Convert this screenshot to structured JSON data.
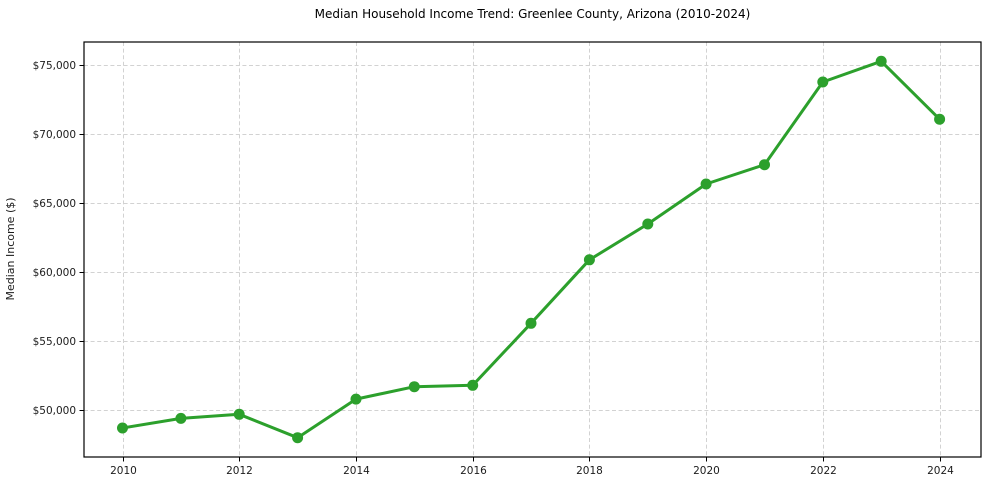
{
  "chart_data": {
    "type": "line",
    "title": "Median Household Income Trend: Greenlee County, Arizona (2010-2024)",
    "xlabel": "",
    "ylabel": "Median Income ($)",
    "x": [
      2010,
      2011,
      2012,
      2013,
      2014,
      2015,
      2016,
      2017,
      2018,
      2019,
      2020,
      2021,
      2022,
      2023,
      2024
    ],
    "values": [
      48700,
      49400,
      49700,
      48000,
      50800,
      51700,
      51800,
      56300,
      60900,
      63500,
      66400,
      67800,
      73800,
      75300,
      71100
    ],
    "x_ticks": [
      2010,
      2012,
      2014,
      2016,
      2018,
      2020,
      2022,
      2024
    ],
    "x_tick_labels": [
      "2010",
      "2012",
      "2014",
      "2016",
      "2018",
      "2020",
      "2022",
      "2024"
    ],
    "y_ticks": [
      50000,
      55000,
      60000,
      65000,
      70000,
      75000
    ],
    "y_tick_labels": [
      "$50,000",
      "$55,000",
      "$60,000",
      "$65,000",
      "$70,000",
      "$75,000"
    ],
    "xlim": [
      2009.34,
      2024.71
    ],
    "ylim": [
      46600,
      76700
    ],
    "grid": true,
    "grid_style": "dashed",
    "legend": false,
    "marker": "circle",
    "line_color": "#2ca02c",
    "grid_color": "#d2d2d2",
    "axis_color": "#000000",
    "text_color": "#1c1c1c",
    "background_color": "#ffffff"
  }
}
